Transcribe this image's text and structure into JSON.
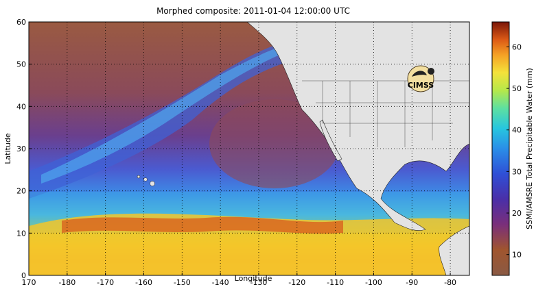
{
  "title": "Morphed composite: 2011-01-04 12:00:00 UTC",
  "x_axis": {
    "label": "Longitude",
    "range": [
      170,
      -75
    ],
    "ticks": [
      "170",
      "-180",
      "-170",
      "-160",
      "-150",
      "-140",
      "-130",
      "-120",
      "-110",
      "-100",
      "-90",
      "-80"
    ],
    "tick_values": [
      170,
      180,
      190,
      200,
      210,
      220,
      230,
      240,
      250,
      260,
      270,
      280
    ]
  },
  "y_axis": {
    "label": "Latitude",
    "range": [
      0,
      60
    ],
    "ticks": [
      "0",
      "10",
      "20",
      "30",
      "40",
      "50",
      "60"
    ],
    "tick_values": [
      0,
      10,
      20,
      30,
      40,
      50,
      60
    ]
  },
  "colorbar": {
    "label": "SSMI/AMSRE Total Precipitable Water (mm)",
    "range": [
      5,
      66
    ],
    "ticks": [
      "10",
      "20",
      "30",
      "40",
      "50",
      "60"
    ],
    "tick_values": [
      10,
      20,
      30,
      40,
      50,
      60
    ]
  },
  "logo": {
    "text": "CIMSS"
  },
  "colors": {
    "land": "#e3e3e3",
    "dry": "#8e5a3e",
    "mid": "#3a3fb8",
    "wet": "#f2b01e"
  }
}
